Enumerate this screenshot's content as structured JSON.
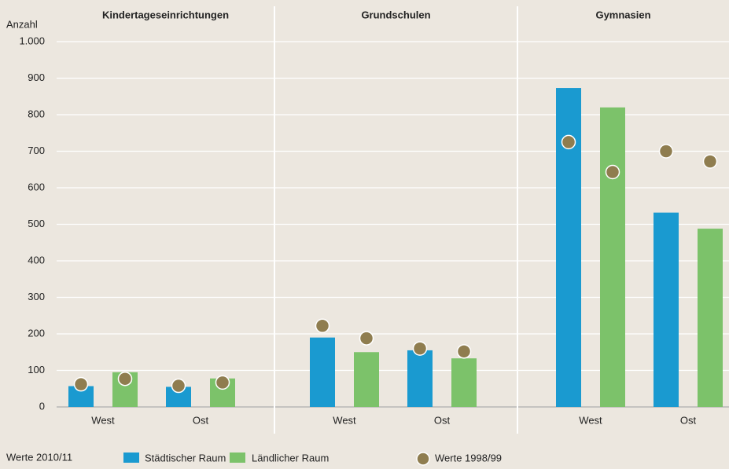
{
  "chart_data": {
    "type": "bar",
    "ylabel": "Anzahl",
    "ylim": [
      0,
      1000
    ],
    "yticks": [
      0,
      100,
      200,
      300,
      400,
      500,
      600,
      700,
      800,
      900,
      {
        "value": 1000,
        "label": "1.000"
      }
    ],
    "grid": true,
    "legend_title": "Werte 2010/11",
    "legend": [
      {
        "name": "Städtischer Raum",
        "color": "#1a9ad0",
        "kind": "bar"
      },
      {
        "name": "Ländlicher Raum",
        "color": "#7cc26a",
        "kind": "bar"
      },
      {
        "name": "Werte 1998/99",
        "color": "#8f7d4f",
        "kind": "dot"
      }
    ],
    "panels": [
      {
        "title": "Kindertageseinrichtungen",
        "categories": [
          "West",
          "Ost"
        ],
        "series": [
          {
            "values": [
              57,
              55
            ]
          },
          {
            "values": [
              95,
              78
            ]
          },
          {
            "values": [
              62,
              58
            ]
          },
          {
            "values": [
              77,
              67
            ]
          }
        ]
      },
      {
        "title": "Grundschulen",
        "categories": [
          "West",
          "Ost"
        ],
        "series": [
          {
            "values": [
              190,
              155
            ]
          },
          {
            "values": [
              150,
              133
            ]
          },
          {
            "values": [
              222,
              160
            ]
          },
          {
            "values": [
              188,
              152
            ]
          }
        ]
      },
      {
        "title": "Gymnasien",
        "categories": [
          "West",
          "Ost"
        ],
        "series": [
          {
            "values": [
              873,
              532
            ]
          },
          {
            "values": [
              820,
              488
            ]
          },
          {
            "values": [
              725,
              700
            ]
          },
          {
            "values": [
              643,
              672
            ]
          }
        ]
      }
    ]
  }
}
